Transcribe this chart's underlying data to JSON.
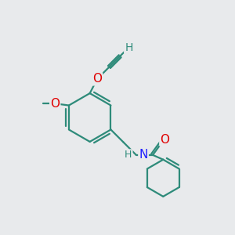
{
  "bg_color": "#e8eaec",
  "bond_color": "#2e8b7a",
  "atom_colors": {
    "O": "#e00000",
    "N": "#2020ff",
    "C": "#2e8b7a",
    "H": "#2e8b7a"
  },
  "bond_width": 1.6,
  "font_size": 10,
  "title": ""
}
